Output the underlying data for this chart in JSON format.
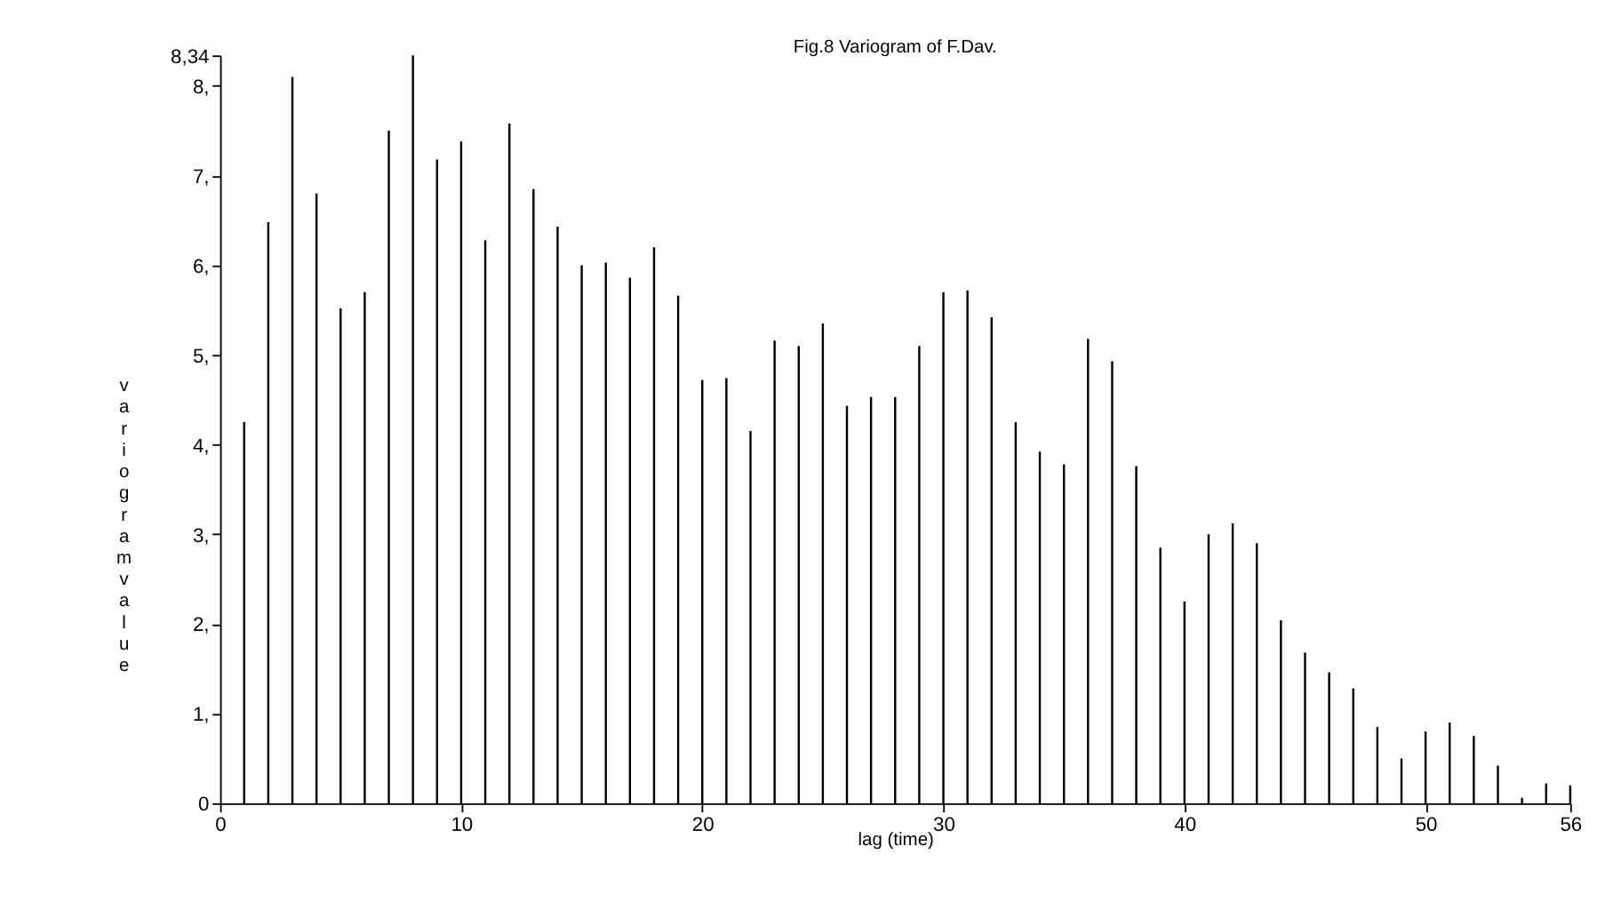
{
  "chart_data": {
    "type": "bar",
    "title": "Fig.8 Variogram of F.Dav.",
    "xlabel": "lag  (time)",
    "ylabel": "variogram value",
    "x": [
      1,
      2,
      3,
      4,
      5,
      6,
      7,
      8,
      9,
      10,
      11,
      12,
      13,
      14,
      15,
      16,
      17,
      18,
      19,
      20,
      21,
      22,
      23,
      24,
      25,
      26,
      27,
      28,
      29,
      30,
      31,
      32,
      33,
      34,
      35,
      36,
      37,
      38,
      39,
      40,
      41,
      42,
      43,
      44,
      45,
      46,
      47,
      48,
      49,
      50,
      51,
      52,
      53,
      54,
      55,
      56
    ],
    "values": [
      4.25,
      6.48,
      8.1,
      6.8,
      5.52,
      5.7,
      7.5,
      8.34,
      7.18,
      7.38,
      6.28,
      7.58,
      6.85,
      6.43,
      6.0,
      6.03,
      5.86,
      6.2,
      5.66,
      4.72,
      4.74,
      4.15,
      5.16,
      5.1,
      5.35,
      4.43,
      4.53,
      4.53,
      5.1,
      5.7,
      5.72,
      5.42,
      4.25,
      3.92,
      3.78,
      5.18,
      4.93,
      3.76,
      2.85,
      2.25,
      3.0,
      3.12,
      2.9,
      2.04,
      1.68,
      1.46,
      1.28,
      0.85,
      0.5,
      0.8,
      0.9,
      0.75,
      0.42,
      0.06,
      0.22,
      0.2
    ],
    "color": "#000000",
    "xlim": [
      0,
      56
    ],
    "xticks": [
      0,
      10,
      20,
      30,
      40,
      50,
      56
    ],
    "ylim": [
      0,
      8.34
    ],
    "yticks": [
      0,
      {
        "value": 1,
        "label": "1,"
      },
      {
        "value": 2,
        "label": "2,"
      },
      {
        "value": 3,
        "label": "3,"
      },
      {
        "value": 4,
        "label": "4,"
      },
      {
        "value": 5,
        "label": "5,"
      },
      {
        "value": 6,
        "label": "6,"
      },
      {
        "value": 7,
        "label": "7,"
      },
      {
        "value": 8,
        "label": "8,"
      },
      {
        "value": 8.34,
        "label": "8,34"
      }
    ],
    "grid": false
  }
}
